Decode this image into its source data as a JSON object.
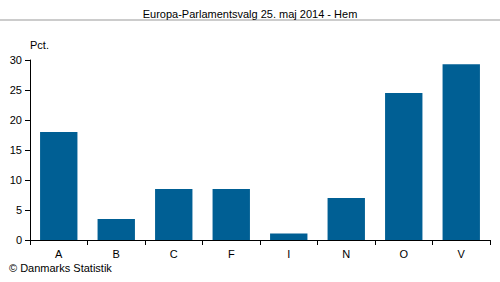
{
  "chart_data": {
    "type": "bar",
    "title": "Europa-Parlamentsvalg 25. maj 2014 - Hem",
    "ylabel": "Pct.",
    "annotations": [
      "© Danmarks Statistik"
    ],
    "categories": [
      "A",
      "B",
      "C",
      "F",
      "I",
      "N",
      "O",
      "V"
    ],
    "values": [
      18.0,
      3.5,
      8.5,
      8.5,
      1.1,
      7.0,
      24.5,
      29.3
    ],
    "color": "#005f94",
    "ylim": [
      0,
      30
    ],
    "yticks": [
      0,
      5,
      10,
      15,
      20,
      25,
      30
    ],
    "grid": false
  }
}
